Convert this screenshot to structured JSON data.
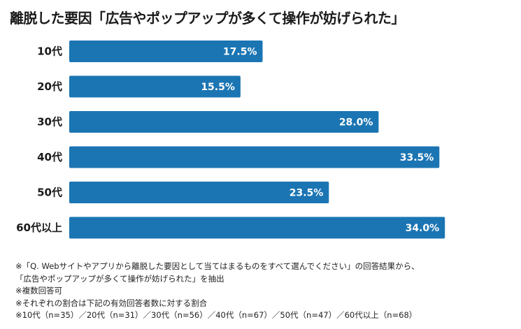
{
  "title": "離脱した要因「広告やポップアップが多くて操作が妨げられた」",
  "chart_data": {
    "type": "bar",
    "orientation": "horizontal",
    "title": "離脱した要因「広告やポップアップが多くて操作が妨げられた」",
    "categories": [
      "10代",
      "20代",
      "30代",
      "40代",
      "50代",
      "60代以上"
    ],
    "values": [
      17.5,
      15.5,
      28.0,
      33.5,
      23.5,
      34.0
    ],
    "value_labels": [
      "17.5%",
      "15.5%",
      "28.0%",
      "33.5%",
      "23.5%",
      "34.0%"
    ],
    "xlim": [
      0,
      40
    ],
    "unit": "%",
    "bar_color": "#1b75b3",
    "grid": false
  },
  "notes": [
    "※「Q. Webサイトやアプリから離脱した要因として当てはまるものをすべて選んでください」の回答結果から、",
    "「広告やポップアップが多くて操作が妨げられた」を抽出",
    "※複数回答可",
    "※それぞれの割合は下記の有効回答者数に対する割合",
    "※10代（n=35）／20代（n=31）／30代（n=56）／40代（n=67）／50代（n=47）／60代以上（n=68）"
  ]
}
